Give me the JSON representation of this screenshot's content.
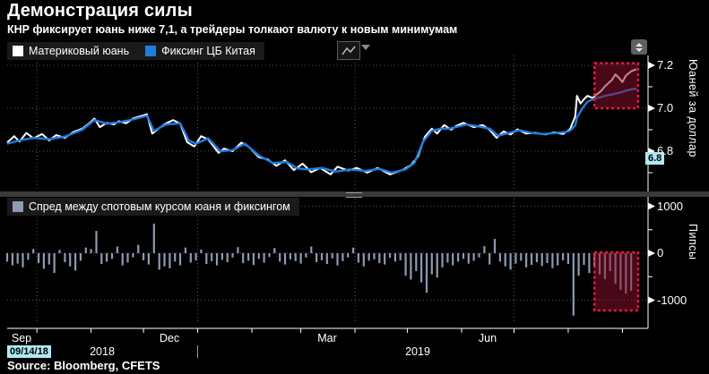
{
  "header": {
    "title": "Демонстрация силы",
    "subtitle": "КНР фиксирует юань ниже 7,1, а трейдеры толкают валюту к новым минимумам"
  },
  "toolbar": {
    "chart_type_icon": "line-chart-icon",
    "chart_type_caret": "caret-down-icon",
    "panel_toggle_icon": "up-down-spinner-icon"
  },
  "top_panel": {
    "legend": [
      {
        "label": "Материковый юань",
        "color": "#ffffff"
      },
      {
        "label": "Фиксинг ЦБ Китая",
        "color": "#1f7de0"
      }
    ],
    "axis_title": "Юаней за доллар",
    "value_badge": "6.8"
  },
  "bottom_panel": {
    "legend": [
      {
        "label": "Спред между спотовым курсом юаня и фиксингом",
        "color": "#8e9ab3"
      }
    ],
    "axis_title": "Пипсы"
  },
  "xaxis": {
    "months": [
      {
        "label": "Sep",
        "day_center": 8
      },
      {
        "label": "Dec",
        "day_center": 93
      },
      {
        "label": "Mar",
        "day_center": 183
      },
      {
        "label": "Jun",
        "day_center": 275
      }
    ],
    "years": [
      {
        "label": "2018",
        "day_center": 54
      },
      {
        "label": "2019",
        "day_center": 235
      }
    ],
    "date_badge": "09/14/18"
  },
  "footer": {
    "source": "Source: Bloomberg, CFETS"
  },
  "colors": {
    "background": "#000000",
    "grid": "#565656",
    "axis": "#ffffff",
    "spot_line": "#ffffff",
    "fixing_line": "#1f7de0",
    "bars": "#8e9ab3",
    "highlight_fill": "#8f0f2e",
    "highlight_stroke": "#ef1745",
    "badge_bg": "#aee9f2"
  },
  "chart_data": [
    {
      "type": "line",
      "x_epoch": "2018-09-14",
      "x_unit": "days since 2018-09-14",
      "x_domain_days": [
        0,
        361
      ],
      "ylim": [
        6.617,
        7.246
      ],
      "yticks": [
        {
          "v": 7.2,
          "label": "7.2"
        },
        {
          "v": 7.0,
          "label": "7.0"
        },
        {
          "v": 6.8,
          "label": "6.8"
        }
      ],
      "yticks_minor": [
        7.1,
        6.9,
        6.7
      ],
      "xticks_days": [
        17,
        48,
        78,
        109,
        140,
        168,
        199,
        229,
        260,
        290,
        321,
        352
      ],
      "grid_days": [
        17,
        109,
        199,
        290
      ],
      "legend_position": "top-left",
      "grid": "dotted",
      "series": [
        {
          "name": "Материковый юань",
          "color": "#ffffff",
          "points": [
            [
              0,
              6.84
            ],
            [
              4,
              6.87
            ],
            [
              7,
              6.845
            ],
            [
              11,
              6.885
            ],
            [
              15,
              6.86
            ],
            [
              20,
              6.88
            ],
            [
              24,
              6.85
            ],
            [
              28,
              6.875
            ],
            [
              33,
              6.862
            ],
            [
              38,
              6.89
            ],
            [
              43,
              6.905
            ],
            [
              47,
              6.93
            ],
            [
              50,
              6.952
            ],
            [
              53,
              6.912
            ],
            [
              57,
              6.932
            ],
            [
              61,
              6.925
            ],
            [
              64,
              6.94
            ],
            [
              68,
              6.93
            ],
            [
              72,
              6.952
            ],
            [
              76,
              6.962
            ],
            [
              80,
              6.972
            ],
            [
              83,
              6.882
            ],
            [
              87,
              6.908
            ],
            [
              91,
              6.93
            ],
            [
              95,
              6.945
            ],
            [
              99,
              6.928
            ],
            [
              103,
              6.842
            ],
            [
              107,
              6.822
            ],
            [
              111,
              6.87
            ],
            [
              115,
              6.855
            ],
            [
              121,
              6.792
            ],
            [
              124,
              6.812
            ],
            [
              129,
              6.8
            ],
            [
              134,
              6.84
            ],
            [
              138,
              6.822
            ],
            [
              144,
              6.772
            ],
            [
              149,
              6.762
            ],
            [
              154,
              6.732
            ],
            [
              159,
              6.758
            ],
            [
              164,
              6.712
            ],
            [
              169,
              6.742
            ],
            [
              174,
              6.702
            ],
            [
              179,
              6.722
            ],
            [
              185,
              6.692
            ],
            [
              189,
              6.728
            ],
            [
              195,
              6.71
            ],
            [
              200,
              6.722
            ],
            [
              206,
              6.7
            ],
            [
              212,
              6.722
            ],
            [
              219,
              6.692
            ],
            [
              226,
              6.712
            ],
            [
              231,
              6.735
            ],
            [
              235,
              6.775
            ],
            [
              239,
              6.868
            ],
            [
              243,
              6.905
            ],
            [
              246,
              6.882
            ],
            [
              250,
              6.922
            ],
            [
              254,
              6.9
            ],
            [
              257,
              6.918
            ],
            [
              261,
              6.932
            ],
            [
              267,
              6.912
            ],
            [
              272,
              6.922
            ],
            [
              276,
              6.9
            ],
            [
              280,
              6.862
            ],
            [
              284,
              6.892
            ],
            [
              288,
              6.878
            ],
            [
              292,
              6.902
            ],
            [
              297,
              6.882
            ],
            [
              302,
              6.886
            ],
            [
              308,
              6.878
            ],
            [
              313,
              6.888
            ],
            [
              318,
              6.88
            ],
            [
              322,
              6.902
            ],
            [
              325,
              6.962
            ],
            [
              326,
              7.058
            ],
            [
              328,
              7.022
            ],
            [
              330,
              7.042
            ],
            [
              332,
              7.058
            ],
            [
              335,
              7.048
            ],
            [
              337,
              7.062
            ],
            [
              340,
              7.082
            ],
            [
              342,
              7.102
            ],
            [
              346,
              7.132
            ],
            [
              348,
              7.158
            ],
            [
              350,
              7.142
            ],
            [
              352,
              7.122
            ],
            [
              354,
              7.152
            ],
            [
              357,
              7.172
            ],
            [
              360,
              7.182
            ]
          ]
        },
        {
          "name": "Фиксинг ЦБ Китая",
          "color": "#1f7de0",
          "points": [
            [
              0,
              6.835
            ],
            [
              7,
              6.85
            ],
            [
              15,
              6.862
            ],
            [
              24,
              6.856
            ],
            [
              33,
              6.868
            ],
            [
              43,
              6.9
            ],
            [
              50,
              6.945
            ],
            [
              57,
              6.928
            ],
            [
              64,
              6.935
            ],
            [
              72,
              6.948
            ],
            [
              80,
              6.965
            ],
            [
              84,
              6.895
            ],
            [
              91,
              6.925
            ],
            [
              99,
              6.93
            ],
            [
              104,
              6.85
            ],
            [
              108,
              6.835
            ],
            [
              115,
              6.86
            ],
            [
              122,
              6.8
            ],
            [
              129,
              6.805
            ],
            [
              136,
              6.835
            ],
            [
              144,
              6.78
            ],
            [
              152,
              6.745
            ],
            [
              160,
              6.75
            ],
            [
              166,
              6.72
            ],
            [
              172,
              6.715
            ],
            [
              180,
              6.722
            ],
            [
              188,
              6.705
            ],
            [
              196,
              6.715
            ],
            [
              205,
              6.708
            ],
            [
              213,
              6.718
            ],
            [
              220,
              6.7
            ],
            [
              228,
              6.716
            ],
            [
              233,
              6.745
            ],
            [
              238,
              6.845
            ],
            [
              243,
              6.895
            ],
            [
              248,
              6.905
            ],
            [
              253,
              6.905
            ],
            [
              258,
              6.915
            ],
            [
              263,
              6.925
            ],
            [
              270,
              6.915
            ],
            [
              276,
              6.905
            ],
            [
              281,
              6.872
            ],
            [
              287,
              6.885
            ],
            [
              293,
              6.898
            ],
            [
              300,
              6.885
            ],
            [
              307,
              6.88
            ],
            [
              314,
              6.885
            ],
            [
              320,
              6.89
            ],
            [
              322,
              6.895
            ],
            [
              325,
              6.92
            ],
            [
              326,
              6.955
            ],
            [
              328,
              6.985
            ],
            [
              330,
              7.01
            ],
            [
              332,
              7.03
            ],
            [
              335,
              7.042
            ],
            [
              337,
              7.048
            ],
            [
              340,
              7.052
            ],
            [
              342,
              7.058
            ],
            [
              346,
              7.064
            ],
            [
              348,
              7.068
            ],
            [
              350,
              7.072
            ],
            [
              352,
              7.076
            ],
            [
              354,
              7.082
            ],
            [
              357,
              7.088
            ],
            [
              360,
              7.092
            ]
          ]
        }
      ],
      "highlight_box": {
        "day0": 336,
        "day1": 361,
        "v0": 7.0,
        "v1": 7.21
      }
    },
    {
      "type": "bar",
      "x_epoch": "2018-09-14",
      "ylim": [
        -1467,
        1162
      ],
      "yticks": [
        {
          "v": 1000,
          "label": "1000"
        },
        {
          "v": 0,
          "label": "0"
        },
        {
          "v": -1000,
          "label": "-1000"
        }
      ],
      "yticks_minor": [
        500,
        -500
      ],
      "bar_color": "#8e9ab3",
      "bars": {
        "day_start": 0,
        "day_step": 3,
        "values": [
          -180,
          -260,
          -220,
          -300,
          -140,
          90,
          -210,
          -330,
          -240,
          -420,
          70,
          -190,
          -280,
          -370,
          -160,
          120,
          90,
          475,
          -230,
          -180,
          -120,
          140,
          -260,
          -200,
          -90,
          180,
          -150,
          -240,
          630,
          -350,
          -280,
          -320,
          -180,
          -260,
          120,
          -200,
          -150,
          80,
          -230,
          -170,
          -260,
          -140,
          -190,
          -90,
          130,
          -210,
          -160,
          -250,
          -120,
          -200,
          -80,
          110,
          -180,
          -240,
          -130,
          -170,
          -220,
          -90,
          140,
          -190,
          -150,
          -230,
          -110,
          -260,
          -170,
          -90,
          120,
          -200,
          -280,
          -160,
          -130,
          -210,
          -240,
          -100,
          -180,
          -150,
          -480,
          -560,
          -380,
          -620,
          -840,
          -450,
          -520,
          -300,
          -200,
          -260,
          -180,
          -120,
          -220,
          -160,
          -90,
          150,
          -240,
          305,
          -180,
          -280,
          -350,
          -220,
          -160,
          -300,
          -250,
          -190,
          -270,
          -210,
          -320,
          -260,
          -150,
          -230,
          -1330,
          -480,
          -250,
          -420,
          -300,
          -450,
          -550,
          -380,
          -650,
          -780,
          -860,
          -800
        ]
      },
      "highlight_box": {
        "day0": 336,
        "day1": 361,
        "p0": -1220,
        "p1": 20
      }
    }
  ]
}
